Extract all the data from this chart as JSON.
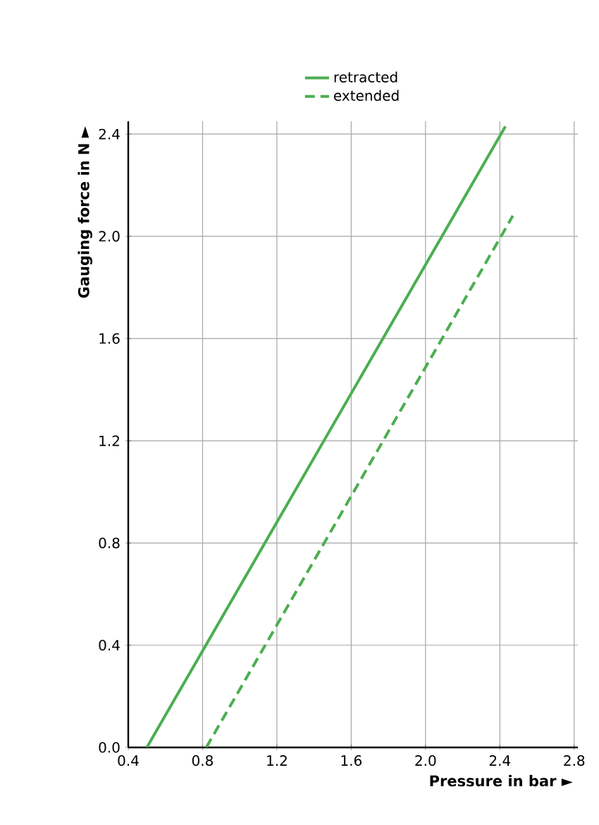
{
  "chart_data": {
    "type": "line",
    "xlabel": "Pressure in bar ►",
    "ylabel": "Gauging force in N ►",
    "series": [
      {
        "name": "retracted",
        "color": "#4cae50",
        "line_style": "solid",
        "x": [
          0.5,
          2.43
        ],
        "values": [
          0,
          2.43
        ]
      },
      {
        "name": "extended",
        "color": "#4cae50",
        "line_style": "dashed",
        "x": [
          0.82,
          2.47
        ],
        "values": [
          0,
          2.08
        ]
      }
    ],
    "xlim": [
      0.4,
      2.82
    ],
    "ylim": [
      0,
      2.45
    ],
    "xticks": [
      {
        "value": 0.4,
        "label": "0.4"
      },
      {
        "value": 0.8,
        "label": "0.8"
      },
      {
        "value": 1.2,
        "label": "1.2"
      },
      {
        "value": 1.6,
        "label": "1.6"
      },
      {
        "value": 2.0,
        "label": "2.0"
      },
      {
        "value": 2.4,
        "label": "2.4"
      },
      {
        "value": 2.8,
        "label": "2.8"
      }
    ],
    "yticks": [
      {
        "value": 0,
        "label": "0.0"
      },
      {
        "value": 0.4,
        "label": "0.4"
      },
      {
        "value": 0.8,
        "label": "0.8"
      },
      {
        "value": 1.2,
        "label": "1.2"
      },
      {
        "value": 1.6,
        "label": "1.6"
      },
      {
        "value": 2.0,
        "label": "2.0"
      },
      {
        "value": 2.4,
        "label": "2.4"
      }
    ],
    "grid": true,
    "legend": "top",
    "marker": "none"
  }
}
